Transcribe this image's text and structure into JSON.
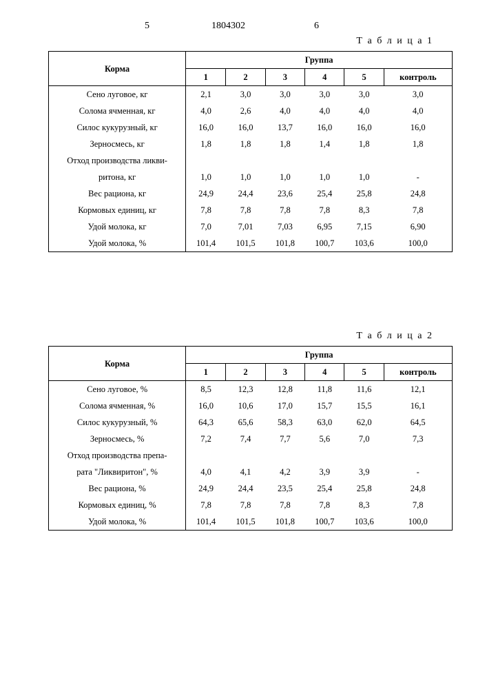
{
  "header": {
    "left_num": "5",
    "doc_num": "1804302",
    "right_num": "6"
  },
  "table1": {
    "label": "Т а б л и ц а 1",
    "corner": "Корма",
    "group_header": "Группа",
    "cols": [
      "1",
      "2",
      "3",
      "4",
      "5",
      "контроль"
    ],
    "rows": [
      {
        "label": "Сено луговое, кг",
        "v": [
          "2,1",
          "3,0",
          "3,0",
          "3,0",
          "3,0",
          "3,0"
        ]
      },
      {
        "label": "Солома ячменная, кг",
        "v": [
          "4,0",
          "2,6",
          "4,0",
          "4,0",
          "4,0",
          "4,0"
        ]
      },
      {
        "label": "Силос кукурузный, кг",
        "v": [
          "16,0",
          "16,0",
          "13,7",
          "16,0",
          "16,0",
          "16,0"
        ]
      },
      {
        "label": "Зерносмесь, кг",
        "v": [
          "1,8",
          "1,8",
          "1,8",
          "1,4",
          "1,8",
          "1,8"
        ]
      },
      {
        "label": "Отход производства ликви-",
        "v": [
          "",
          "",
          "",
          "",
          "",
          ""
        ]
      },
      {
        "label": "ритона, кг",
        "v": [
          "1,0",
          "1,0",
          "1,0",
          "1,0",
          "1,0",
          "-"
        ]
      },
      {
        "label": "Вес рациона, кг",
        "v": [
          "24,9",
          "24,4",
          "23,6",
          "25,4",
          "25,8",
          "24,8"
        ]
      },
      {
        "label": "Кормовых единиц, кг",
        "v": [
          "7,8",
          "7,8",
          "7,8",
          "7,8",
          "8,3",
          "7,8"
        ]
      },
      {
        "label": "Удой молока, кг",
        "v": [
          "7,0",
          "7,01",
          "7,03",
          "6,95",
          "7,15",
          "6,90"
        ]
      },
      {
        "label": "Удой молока, %",
        "v": [
          "101,4",
          "101,5",
          "101,8",
          "100,7",
          "103,6",
          "100,0"
        ]
      }
    ]
  },
  "table2": {
    "label": "Т а б л и ц а  2",
    "corner": "Корма",
    "group_header": "Группа",
    "cols": [
      "1",
      "2",
      "3",
      "4",
      "5",
      "контроль"
    ],
    "rows": [
      {
        "label": "Сено луговое, %",
        "v": [
          "8,5",
          "12,3",
          "12,8",
          "11,8",
          "11,6",
          "12,1"
        ]
      },
      {
        "label": "Солома ячменная, %",
        "v": [
          "16,0",
          "10,6",
          "17,0",
          "15,7",
          "15,5",
          "16,1"
        ]
      },
      {
        "label": "Силос кукурузный, %",
        "v": [
          "64,3",
          "65,6",
          "58,3",
          "63,0",
          "62,0",
          "64,5"
        ]
      },
      {
        "label": "Зерносмесь, %",
        "v": [
          "7,2",
          "7,4",
          "7,7",
          "5,6",
          "7,0",
          "7,3"
        ]
      },
      {
        "label": "Отход производства препа-",
        "v": [
          "",
          "",
          "",
          "",
          "",
          ""
        ]
      },
      {
        "label": "рата \"Ликвиритон\", %",
        "v": [
          "4,0",
          "4,1",
          "4,2",
          "3,9",
          "3,9",
          "-"
        ]
      },
      {
        "label": "Вес рациона, %",
        "v": [
          "24,9",
          "24,4",
          "23,5",
          "25,4",
          "25,8",
          "24,8"
        ]
      },
      {
        "label": "Кормовых единиц, %",
        "v": [
          "7,8",
          "7,8",
          "7,8",
          "7,8",
          "8,3",
          "7,8"
        ]
      },
      {
        "label": "Удой молока, %",
        "v": [
          "101,4",
          "101,5",
          "101,8",
          "100,7",
          "103,6",
          "100,0"
        ]
      }
    ]
  }
}
